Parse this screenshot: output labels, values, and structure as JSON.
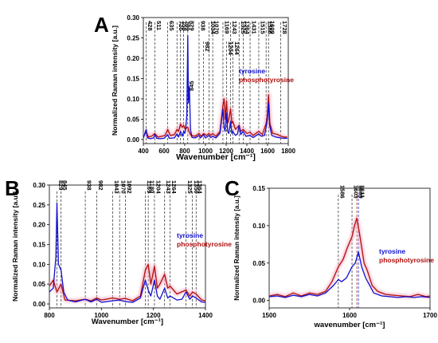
{
  "colors": {
    "tyrosine": "#1010d0",
    "phosphotyrosine": "#b01010",
    "phospho_glow": "#f4b6c8"
  },
  "chart_data": [
    {
      "panel": "A",
      "type": "line",
      "xlabel": "Wavenumber [cm⁻¹]",
      "ylabel": "Normalized Raman intensity [a.u.]",
      "xlim": [
        400,
        1800
      ],
      "ylim": [
        -0.01,
        0.3
      ],
      "x_ticks": [
        "400",
        "600",
        "800",
        "1000",
        "1200",
        "1400",
        "1600",
        "1800"
      ],
      "x_tick_values": [
        400,
        600,
        800,
        1000,
        1200,
        1400,
        1600,
        1800
      ],
      "y_ticks": [
        "0.00",
        "0.05",
        "0.10",
        "0.15",
        "0.20",
        "0.25",
        "0.30"
      ],
      "y_tick_values": [
        0,
        0.05,
        0.1,
        0.15,
        0.2,
        0.25,
        0.3
      ],
      "peak_lines": [
        "428",
        "511",
        "635",
        "725",
        "759",
        "789",
        "829",
        "938",
        "1034",
        "1070",
        "1169",
        "1243",
        "1325",
        "1364",
        "1431",
        "1515",
        "1586",
        "1609",
        "1728"
      ],
      "peak_lines_inner": [
        "982",
        "1204",
        "1264"
      ],
      "peak_annotations": [
        "845"
      ],
      "legend": [
        {
          "name": "tyrosine",
          "color": "#1010d0"
        },
        {
          "name": "phosphotyrosine",
          "color": "#b01010"
        }
      ],
      "series": [
        {
          "name": "tyrosine",
          "x": [
            400,
            428,
            440,
            470,
            500,
            511,
            530,
            560,
            600,
            635,
            650,
            700,
            725,
            740,
            759,
            775,
            789,
            800,
            810,
            820,
            829,
            835,
            845,
            855,
            870,
            900,
            938,
            950,
            982,
            1000,
            1034,
            1050,
            1070,
            1100,
            1140,
            1169,
            1180,
            1190,
            1204,
            1215,
            1225,
            1243,
            1255,
            1264,
            1290,
            1310,
            1325,
            1340,
            1364,
            1390,
            1431,
            1460,
            1515,
            1540,
            1570,
            1586,
            1598,
            1609,
            1620,
            1640,
            1680,
            1728,
            1760,
            1790
          ],
          "y": [
            0.004,
            0.025,
            0.004,
            0.002,
            0.004,
            0.012,
            0.003,
            0.002,
            0.003,
            0.012,
            0.003,
            0.004,
            0.014,
            0.006,
            0.02,
            0.008,
            0.02,
            0.015,
            0.03,
            0.06,
            0.255,
            0.09,
            0.13,
            0.025,
            0.005,
            0.004,
            0.01,
            0.004,
            0.012,
            0.004,
            0.01,
            0.005,
            0.008,
            0.004,
            0.015,
            0.075,
            0.03,
            0.02,
            0.065,
            0.02,
            0.015,
            0.045,
            0.015,
            0.02,
            0.01,
            0.014,
            0.035,
            0.012,
            0.02,
            0.008,
            0.01,
            0.005,
            0.014,
            0.008,
            0.01,
            0.03,
            0.05,
            0.09,
            0.035,
            0.01,
            0.006,
            0.004,
            0.003,
            0.003
          ]
        },
        {
          "name": "phosphotyrosine",
          "x": [
            400,
            428,
            450,
            480,
            511,
            540,
            580,
            610,
            635,
            660,
            700,
            725,
            740,
            759,
            775,
            789,
            805,
            820,
            829,
            840,
            860,
            900,
            938,
            960,
            982,
            1010,
            1034,
            1050,
            1070,
            1100,
            1140,
            1169,
            1180,
            1190,
            1204,
            1215,
            1225,
            1243,
            1255,
            1264,
            1290,
            1325,
            1340,
            1364,
            1400,
            1431,
            1460,
            1515,
            1550,
            1586,
            1598,
            1609,
            1622,
            1650,
            1700,
            1728,
            1760,
            1790
          ],
          "y": [
            0.008,
            0.018,
            0.006,
            0.008,
            0.015,
            0.006,
            0.008,
            0.01,
            0.025,
            0.01,
            0.012,
            0.025,
            0.02,
            0.038,
            0.03,
            0.035,
            0.025,
            0.03,
            0.03,
            0.02,
            0.01,
            0.008,
            0.015,
            0.008,
            0.015,
            0.01,
            0.015,
            0.01,
            0.015,
            0.008,
            0.02,
            0.085,
            0.1,
            0.05,
            0.095,
            0.04,
            0.05,
            0.075,
            0.04,
            0.045,
            0.025,
            0.035,
            0.02,
            0.025,
            0.015,
            0.018,
            0.01,
            0.02,
            0.012,
            0.04,
            0.06,
            0.11,
            0.04,
            0.015,
            0.012,
            0.008,
            0.006,
            0.006
          ]
        }
      ]
    },
    {
      "panel": "B",
      "type": "line",
      "xlabel": "Wavenumber [cm⁻¹]",
      "ylabel": "Normalized Raman intensity [a.u.]",
      "xlim": [
        800,
        1400
      ],
      "ylim": [
        -0.01,
        0.3
      ],
      "x_ticks": [
        "800",
        "1000",
        "1200",
        "1400"
      ],
      "x_tick_values": [
        800,
        1000,
        1200,
        1400
      ],
      "y_ticks": [
        "0.00",
        "0.05",
        "0.10",
        "0.15",
        "0.20",
        "0.25",
        "0.30"
      ],
      "y_tick_values": [
        0,
        0.05,
        0.1,
        0.15,
        0.2,
        0.25,
        0.3
      ],
      "peak_lines": [
        "829",
        "845",
        "938",
        "982",
        "1043",
        "1070",
        "1092",
        "1169",
        "1180",
        "1204",
        "1243",
        "1264",
        "1325",
        "1350",
        "1364"
      ],
      "legend": [
        {
          "name": "tyrosine",
          "color": "#1010d0"
        },
        {
          "name": "phosphotyrosine",
          "color": "#b01010"
        }
      ],
      "series": [
        {
          "name": "tyrosine",
          "x": [
            800,
            815,
            825,
            829,
            835,
            845,
            855,
            870,
            900,
            938,
            960,
            982,
            1000,
            1043,
            1070,
            1092,
            1120,
            1150,
            1169,
            1180,
            1190,
            1204,
            1215,
            1225,
            1243,
            1255,
            1264,
            1290,
            1310,
            1325,
            1340,
            1350,
            1364,
            1385,
            1400
          ],
          "y": [
            0.03,
            0.04,
            0.12,
            0.255,
            0.1,
            0.085,
            0.03,
            0.01,
            0.005,
            0.012,
            0.005,
            0.012,
            0.004,
            0.008,
            0.01,
            0.006,
            0.004,
            0.015,
            0.06,
            0.035,
            0.02,
            0.06,
            0.02,
            0.012,
            0.04,
            0.015,
            0.02,
            0.01,
            0.012,
            0.03,
            0.012,
            0.02,
            0.015,
            0.005,
            0.004
          ]
        },
        {
          "name": "phosphotyrosine",
          "x": [
            800,
            815,
            829,
            845,
            860,
            900,
            938,
            960,
            982,
            1000,
            1043,
            1070,
            1092,
            1120,
            1150,
            1169,
            1180,
            1190,
            1204,
            1215,
            1225,
            1243,
            1255,
            1264,
            1290,
            1325,
            1340,
            1350,
            1364,
            1385,
            1400
          ],
          "y": [
            0.045,
            0.06,
            0.03,
            0.05,
            0.01,
            0.008,
            0.012,
            0.008,
            0.015,
            0.01,
            0.015,
            0.012,
            0.014,
            0.008,
            0.02,
            0.085,
            0.1,
            0.05,
            0.095,
            0.04,
            0.05,
            0.075,
            0.04,
            0.045,
            0.025,
            0.035,
            0.02,
            0.03,
            0.025,
            0.01,
            0.008
          ]
        }
      ]
    },
    {
      "panel": "C",
      "type": "line",
      "xlabel": "wavenumber [cm⁻¹]",
      "ylabel": "Normalized Raman intensity [a.u.]",
      "xlim": [
        1500,
        1700
      ],
      "ylim": [
        -0.01,
        0.15
      ],
      "x_ticks": [
        "1500",
        "1600",
        "1700"
      ],
      "x_tick_values": [
        1500,
        1600,
        1700
      ],
      "y_ticks": [
        "0.00",
        "0.05",
        "0.10",
        "0.15"
      ],
      "y_tick_values": [
        0,
        0.05,
        0.1,
        0.15
      ],
      "peak_lines": [
        "1586",
        "1603",
        "1609",
        "1611"
      ],
      "peak_line_colors": [
        "#000000",
        "#000000",
        "#b01010",
        "#1010d0"
      ],
      "legend": [
        {
          "name": "tyrosine",
          "color": "#1010d0"
        },
        {
          "name": "phosphotyrosine",
          "color": "#b01010"
        }
      ],
      "series": [
        {
          "name": "tyrosine",
          "x": [
            1500,
            1510,
            1520,
            1530,
            1540,
            1550,
            1560,
            1570,
            1580,
            1586,
            1590,
            1596,
            1603,
            1607,
            1611,
            1615,
            1620,
            1625,
            1630,
            1640,
            1650,
            1660,
            1670,
            1680,
            1690,
            1700
          ],
          "y": [
            0.005,
            0.006,
            0.004,
            0.007,
            0.005,
            0.008,
            0.006,
            0.01,
            0.02,
            0.028,
            0.025,
            0.03,
            0.045,
            0.05,
            0.065,
            0.045,
            0.03,
            0.02,
            0.01,
            0.006,
            0.005,
            0.004,
            0.005,
            0.004,
            0.005,
            0.004
          ]
        },
        {
          "name": "phosphotyrosine",
          "x": [
            1500,
            1510,
            1520,
            1530,
            1540,
            1550,
            1560,
            1570,
            1578,
            1586,
            1592,
            1597,
            1603,
            1606,
            1609,
            1613,
            1618,
            1622,
            1628,
            1635,
            1645,
            1655,
            1665,
            1675,
            1685,
            1695,
            1700
          ],
          "y": [
            0.006,
            0.008,
            0.005,
            0.01,
            0.006,
            0.01,
            0.008,
            0.012,
            0.025,
            0.045,
            0.055,
            0.07,
            0.085,
            0.1,
            0.11,
            0.085,
            0.05,
            0.04,
            0.02,
            0.012,
            0.008,
            0.007,
            0.006,
            0.005,
            0.008,
            0.005,
            0.006
          ]
        }
      ]
    }
  ]
}
